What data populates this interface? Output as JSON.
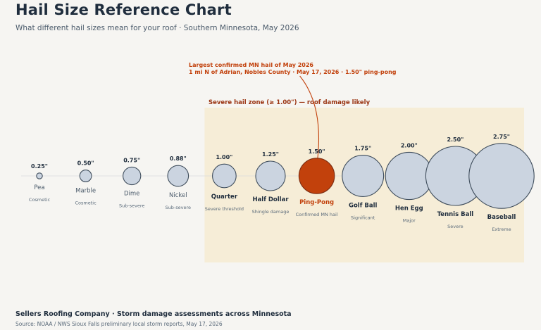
{
  "header": {
    "title": "Hail Size Reference Chart",
    "subtitle": "What different hail sizes mean for your roof  ·  Southern Minnesota, May 2026"
  },
  "chart_data": {
    "type": "scatter",
    "unit": "\"",
    "items": [
      {
        "value": 0.25,
        "value_label": "0.25\"",
        "name": "Pea",
        "category": "Cosmetic",
        "highlight": false
      },
      {
        "value": 0.5,
        "value_label": "0.50\"",
        "name": "Marble",
        "category": "Cosmetic",
        "highlight": false
      },
      {
        "value": 0.75,
        "value_label": "0.75\"",
        "name": "Dime",
        "category": "Sub-severe",
        "highlight": false
      },
      {
        "value": 0.88,
        "value_label": "0.88\"",
        "name": "Nickel",
        "category": "Sub-severe",
        "highlight": false
      },
      {
        "value": 1.0,
        "value_label": "1.00\"",
        "name": "Quarter",
        "category": "Severe threshold",
        "highlight": false
      },
      {
        "value": 1.25,
        "value_label": "1.25\"",
        "name": "Half Dollar",
        "category": "Shingle damage",
        "highlight": false
      },
      {
        "value": 1.5,
        "value_label": "1.50\"",
        "name": "Ping-Pong",
        "category": "Confirmed MN hail",
        "highlight": true
      },
      {
        "value": 1.75,
        "value_label": "1.75\"",
        "name": "Golf Ball",
        "category": "Significant",
        "highlight": false
      },
      {
        "value": 2.0,
        "value_label": "2.00\"",
        "name": "Hen Egg",
        "category": "Major",
        "highlight": false
      },
      {
        "value": 2.5,
        "value_label": "2.50\"",
        "name": "Tennis Ball",
        "category": "Severe",
        "highlight": false
      },
      {
        "value": 2.75,
        "value_label": "2.75\"",
        "name": "Baseball",
        "category": "Extreme",
        "highlight": false
      }
    ],
    "severe_threshold": 1.0,
    "severe_zone_label": "Severe hail zone (≥ 1.00\")  —  roof damage likely",
    "annotation": {
      "line1": "Largest confirmed MN hail of May 2026",
      "line2": "1 mi N of Adrian, Nobles County  ·  May 17, 2026  ·  1.50\" ping-pong",
      "target_value": 1.5
    },
    "colors": {
      "ball": "#cbd4e0",
      "ball_stroke": "#3f4d5c",
      "highlight": "#c2410c",
      "highlight_stroke": "#7c2d12",
      "zone": "#f6edd7",
      "annotation": "#c2410c",
      "zone_label": "#9a3412"
    }
  },
  "footer": {
    "company": "Sellers Roofing Company  ·  Storm damage assessments across Minnesota",
    "source": "Source: NOAA / NWS Sioux Falls preliminary local storm reports, May 17, 2026"
  }
}
